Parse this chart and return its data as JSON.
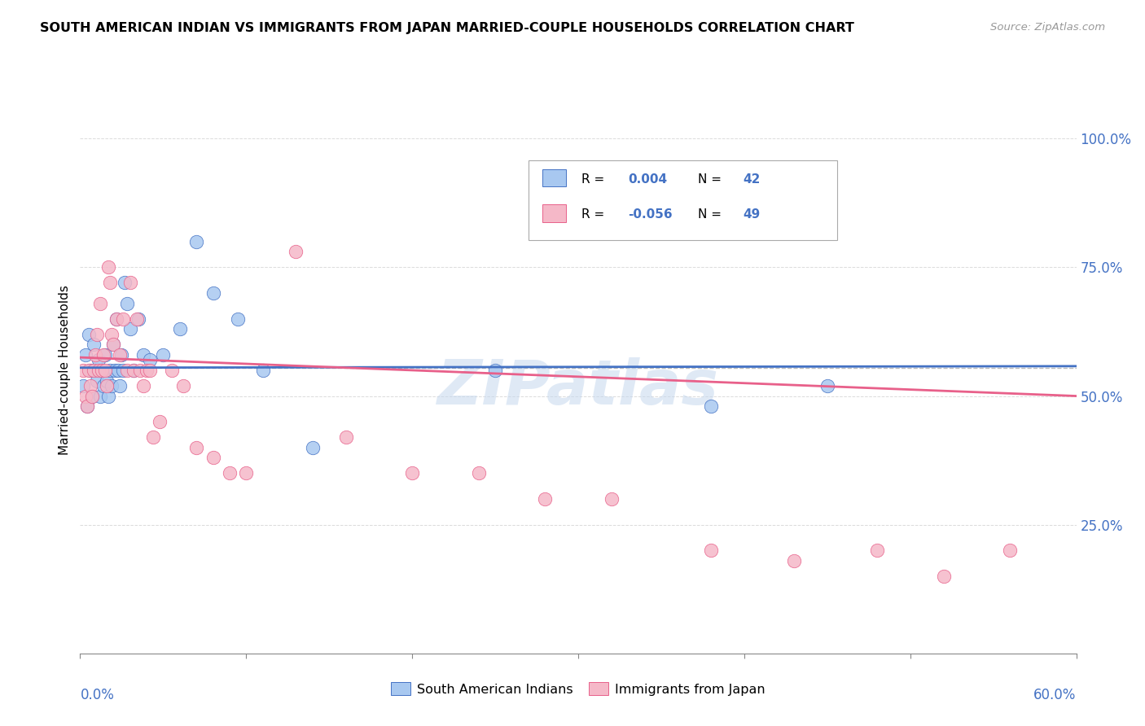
{
  "title": "SOUTH AMERICAN INDIAN VS IMMIGRANTS FROM JAPAN MARRIED-COUPLE HOUSEHOLDS CORRELATION CHART",
  "source": "Source: ZipAtlas.com",
  "ylabel": "Married-couple Households",
  "R1": 0.004,
  "N1": 42,
  "R2": -0.056,
  "N2": 49,
  "color_blue": "#A8C8F0",
  "color_pink": "#F5B8C8",
  "line_color_blue": "#4472C4",
  "line_color_pink": "#E8608A",
  "legend_label1": "South American Indians",
  "legend_label2": "Immigrants from Japan",
  "watermark": "ZIPatlas",
  "grid_color": "#CCCCCC",
  "xlim": [
    0.0,
    0.6
  ],
  "ylim": [
    0.0,
    1.1
  ],
  "blue_x": [
    0.002,
    0.003,
    0.004,
    0.005,
    0.006,
    0.007,
    0.008,
    0.009,
    0.01,
    0.011,
    0.012,
    0.013,
    0.014,
    0.015,
    0.016,
    0.017,
    0.018,
    0.019,
    0.02,
    0.021,
    0.022,
    0.023,
    0.024,
    0.025,
    0.026,
    0.027,
    0.028,
    0.03,
    0.032,
    0.035,
    0.038,
    0.042,
    0.05,
    0.06,
    0.07,
    0.08,
    0.095,
    0.11,
    0.14,
    0.25,
    0.38,
    0.45
  ],
  "blue_y": [
    0.52,
    0.58,
    0.48,
    0.62,
    0.55,
    0.5,
    0.6,
    0.55,
    0.53,
    0.57,
    0.5,
    0.55,
    0.52,
    0.58,
    0.53,
    0.5,
    0.55,
    0.52,
    0.6,
    0.55,
    0.65,
    0.55,
    0.52,
    0.58,
    0.55,
    0.72,
    0.68,
    0.63,
    0.55,
    0.65,
    0.58,
    0.57,
    0.58,
    0.63,
    0.8,
    0.7,
    0.65,
    0.55,
    0.4,
    0.55,
    0.48,
    0.52
  ],
  "pink_x": [
    0.002,
    0.003,
    0.004,
    0.005,
    0.006,
    0.007,
    0.008,
    0.009,
    0.01,
    0.011,
    0.012,
    0.013,
    0.014,
    0.015,
    0.016,
    0.017,
    0.018,
    0.019,
    0.02,
    0.022,
    0.024,
    0.026,
    0.028,
    0.03,
    0.032,
    0.034,
    0.036,
    0.038,
    0.04,
    0.042,
    0.044,
    0.048,
    0.055,
    0.062,
    0.07,
    0.08,
    0.09,
    0.1,
    0.13,
    0.16,
    0.2,
    0.24,
    0.28,
    0.32,
    0.38,
    0.43,
    0.48,
    0.52,
    0.56
  ],
  "pink_y": [
    0.55,
    0.5,
    0.48,
    0.55,
    0.52,
    0.5,
    0.55,
    0.58,
    0.62,
    0.55,
    0.68,
    0.55,
    0.58,
    0.55,
    0.52,
    0.75,
    0.72,
    0.62,
    0.6,
    0.65,
    0.58,
    0.65,
    0.55,
    0.72,
    0.55,
    0.65,
    0.55,
    0.52,
    0.55,
    0.55,
    0.42,
    0.45,
    0.55,
    0.52,
    0.4,
    0.38,
    0.35,
    0.35,
    0.78,
    0.42,
    0.35,
    0.35,
    0.3,
    0.3,
    0.2,
    0.18,
    0.2,
    0.15,
    0.2
  ],
  "blue_trend_x0": 0.0,
  "blue_trend_y0": 0.555,
  "blue_trend_x1": 0.6,
  "blue_trend_y1": 0.558,
  "pink_trend_x0": 0.0,
  "pink_trend_y0": 0.575,
  "pink_trend_x1": 0.6,
  "pink_trend_y1": 0.5,
  "ref_line_y": 0.555
}
